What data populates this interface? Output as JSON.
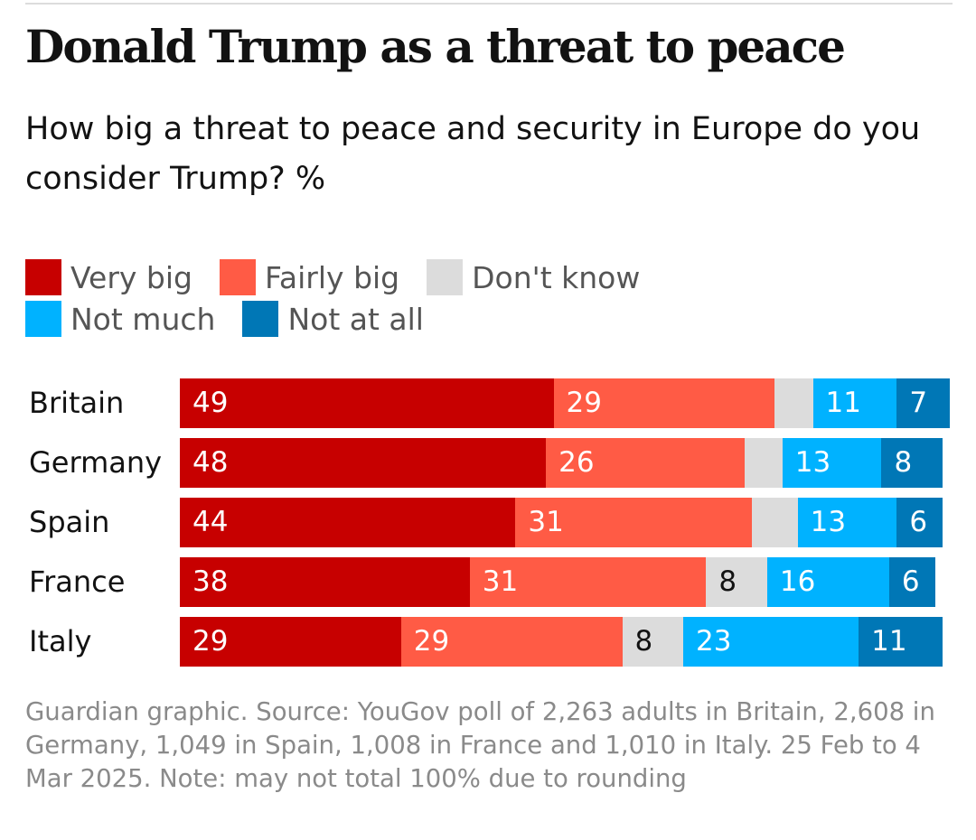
{
  "title": "Donald Trump as a threat to peace",
  "subtitle": "How big a threat to peace and security in Europe do you consider Trump? %",
  "footer": "Guardian graphic. Source: YouGov poll of 2,263 adults in Britain, 2,608 in Germany, 1,049 in Spain, 1,008 in France and 1,010 in Italy. 25 Feb to 4 Mar 2025. Note: may not total 100% due to rounding",
  "chart_data": {
    "type": "bar",
    "orientation": "horizontal-stacked",
    "title": "Donald Trump as a threat to peace",
    "categories": [
      "Britain",
      "Germany",
      "Spain",
      "France",
      "Italy"
    ],
    "series": [
      {
        "name": "Very big",
        "color": "#c70000",
        "text_color": "#ffffff",
        "values": [
          49,
          48,
          44,
          38,
          29
        ],
        "labels": [
          "49",
          "48",
          "44",
          "38",
          "29"
        ]
      },
      {
        "name": "Fairly big",
        "color": "#ff5b45",
        "text_color": "#ffffff",
        "values": [
          29,
          26,
          31,
          31,
          29
        ],
        "labels": [
          "29",
          "26",
          "31",
          "31",
          "29"
        ]
      },
      {
        "name": "Don't know",
        "color": "#dcdcdc",
        "text_color": "#121212",
        "values": [
          5,
          5,
          6,
          8,
          8
        ],
        "labels": [
          "",
          "",
          "",
          "8",
          "8"
        ]
      },
      {
        "name": "Not much",
        "color": "#00b2ff",
        "text_color": "#ffffff",
        "values": [
          11,
          13,
          13,
          16,
          23
        ],
        "labels": [
          "11",
          "13",
          "13",
          "16",
          "23"
        ]
      },
      {
        "name": "Not at all",
        "color": "#0077b6",
        "text_color": "#ffffff",
        "values": [
          7,
          8,
          6,
          6,
          11
        ],
        "labels": [
          "7",
          "8",
          "6",
          "6",
          "11"
        ]
      }
    ],
    "xlim": [
      0,
      101
    ],
    "legend": "top-left",
    "grid": false
  }
}
